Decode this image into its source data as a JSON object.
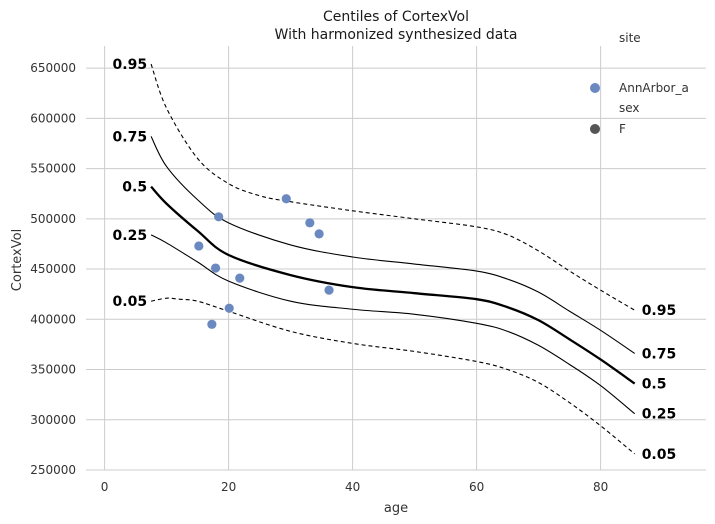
{
  "chart_data": {
    "type": "scatter",
    "title": "Centiles of CortexVol",
    "subtitle": "With harmonized synthesized data",
    "xlabel": "age",
    "ylabel": "CortexVol",
    "xlim": [
      -3,
      97
    ],
    "ylim": [
      250000,
      672000
    ],
    "xticks": [
      0,
      20,
      40,
      60,
      80
    ],
    "yticks": [
      250000,
      300000,
      350000,
      400000,
      450000,
      500000,
      550000,
      600000,
      650000
    ],
    "xtick_labels": [
      "0",
      "20",
      "40",
      "60",
      "80"
    ],
    "ytick_labels": [
      "250000",
      "300000",
      "350000",
      "400000",
      "450000",
      "500000",
      "550000",
      "600000",
      "650000"
    ],
    "grid": true,
    "points_color": "#6a89c0",
    "points": [
      {
        "x": 15.2,
        "y": 473000
      },
      {
        "x": 17.3,
        "y": 395000
      },
      {
        "x": 17.9,
        "y": 451000
      },
      {
        "x": 18.4,
        "y": 502000
      },
      {
        "x": 20.1,
        "y": 411000
      },
      {
        "x": 21.8,
        "y": 441000
      },
      {
        "x": 29.3,
        "y": 520000
      },
      {
        "x": 33.1,
        "y": 496000
      },
      {
        "x": 34.6,
        "y": 485000
      },
      {
        "x": 36.2,
        "y": 429000
      }
    ],
    "centiles": [
      {
        "label": "0.05",
        "style": "dashed",
        "x": [
          7.5,
          10,
          12,
          15,
          20,
          30,
          40,
          50,
          60,
          65,
          70,
          75,
          80,
          85.5
        ],
        "y": [
          418000,
          421000,
          420000,
          418000,
          408000,
          388000,
          376000,
          368000,
          358000,
          350000,
          337000,
          317000,
          294000,
          266000
        ]
      },
      {
        "label": "0.25",
        "style": "solid",
        "x": [
          7.5,
          10,
          15,
          20,
          30,
          40,
          50,
          60,
          65,
          70,
          75,
          80,
          85.5
        ],
        "y": [
          484000,
          476000,
          457000,
          438000,
          418000,
          410000,
          405000,
          396000,
          388000,
          374000,
          355000,
          334000,
          306000
        ]
      },
      {
        "label": "0.5",
        "style": "thick",
        "x": [
          7.5,
          10,
          15,
          20,
          30,
          40,
          50,
          60,
          65,
          70,
          75,
          80,
          85.5
        ],
        "y": [
          532000,
          515000,
          488000,
          464000,
          444000,
          432000,
          426000,
          420000,
          412000,
          399000,
          380000,
          360000,
          336000
        ]
      },
      {
        "label": "0.75",
        "style": "solid",
        "x": [
          7.5,
          10,
          15,
          20,
          30,
          40,
          50,
          60,
          65,
          70,
          75,
          80,
          85.5
        ],
        "y": [
          582000,
          552000,
          519000,
          496000,
          474000,
          462000,
          455000,
          448000,
          440000,
          427000,
          408000,
          389000,
          366000
        ]
      },
      {
        "label": "0.95",
        "style": "dashed",
        "x": [
          7.5,
          10,
          15,
          20,
          25,
          30,
          40,
          50,
          60,
          65,
          70,
          75,
          80,
          85.5
        ],
        "y": [
          654000,
          610000,
          560000,
          535000,
          523000,
          517000,
          508000,
          500000,
          492000,
          484000,
          468000,
          448000,
          429000,
          409000
        ]
      }
    ],
    "left_labels": [
      "0.95",
      "0.75",
      "0.5",
      "0.25",
      "0.05"
    ],
    "right_labels": [
      "0.95",
      "0.75",
      "0.5",
      "0.25",
      "0.05"
    ],
    "legend": {
      "position": "top-right",
      "title1": "site",
      "entry1": "AnnArbor_a",
      "title2": "sex",
      "entry2": "F",
      "entry2_color": "#555555"
    }
  }
}
